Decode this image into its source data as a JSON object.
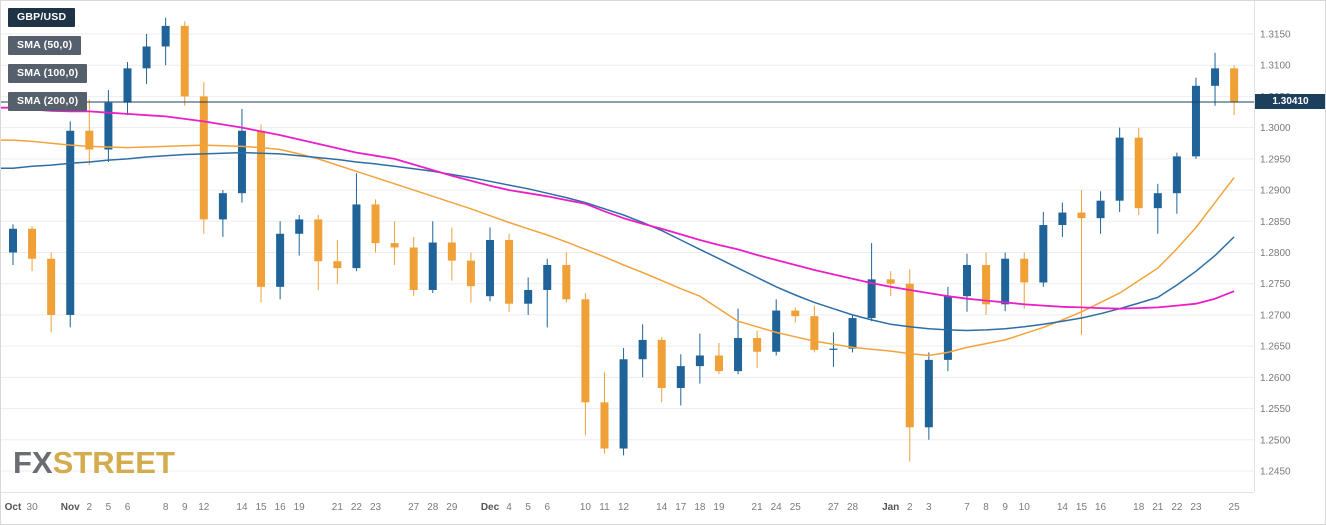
{
  "watermark": {
    "fx": "FX",
    "street": "STREET"
  },
  "legend": {
    "items": [
      {
        "label": "GBP/USD",
        "bg": "#1f3347",
        "color": "#ffffff"
      },
      {
        "label": "SMA (50,0)",
        "bg": "#56606c",
        "color": "#ffffff",
        "line_color": "#f2a33c"
      },
      {
        "label": "SMA (100,0)",
        "bg": "#56606c",
        "color": "#ffffff",
        "line_color": "#2e6da4"
      },
      {
        "label": "SMA (200,0)",
        "bg": "#56606c",
        "color": "#ffffff",
        "line_color": "#ea1fc8"
      }
    ]
  },
  "price_line": {
    "value": 1.3041,
    "label": "1.30410",
    "color": "#1c3f5e"
  },
  "chart_data": {
    "type": "candlestick",
    "title": "GBP/USD",
    "legend_position": "top-left",
    "grid": "horizontal-only",
    "y_axis": {
      "min": 1.245,
      "max": 1.315,
      "tick_step": 0.005,
      "tick_labels": [
        "1.3150",
        "1.3100",
        "1.3050",
        "1.3000",
        "1.2950",
        "1.2900",
        "1.2850",
        "1.2800",
        "1.2750",
        "1.2700",
        "1.2650",
        "1.2600",
        "1.2550",
        "1.2500",
        "1.2450"
      ]
    },
    "x_axis": {
      "note": "one entry per candle; empty label = unlabeled tick",
      "visible_labels": [
        "Oct",
        "30",
        "Nov",
        "2",
        "5",
        "6",
        "8",
        "9",
        "12",
        "14",
        "15",
        "16",
        "19",
        "21",
        "22",
        "23",
        "27",
        "28",
        "29",
        "Dec",
        "4",
        "5",
        "6",
        "10",
        "11",
        "12",
        "14",
        "17",
        "18",
        "19",
        "21",
        "24",
        "25",
        "27",
        "28",
        "Jan",
        "2",
        "3",
        "7",
        "8",
        "9",
        "10",
        "14",
        "15",
        "16",
        "18",
        "21",
        "22",
        "23",
        "25"
      ]
    },
    "colors": {
      "up": "#1f6398",
      "down": "#efa037",
      "sma50": "#f2a33c",
      "sma100": "#2e6da4",
      "sma200": "#ea1fc8",
      "grid": "#ededed",
      "axis_text": "#7a7a7a",
      "month_text": "#555555",
      "separator": "#e2e2e2",
      "price_line": "#1c3f5e"
    },
    "candles_columns": [
      "label",
      "open",
      "high",
      "low",
      "close"
    ],
    "candles": [
      [
        "Oct",
        1.28,
        1.2845,
        1.278,
        1.2838
      ],
      [
        "30",
        1.2838,
        1.2842,
        1.277,
        1.279
      ],
      [
        "",
        1.279,
        1.28,
        1.2672,
        1.27
      ],
      [
        "Nov",
        1.27,
        1.301,
        1.268,
        1.2995
      ],
      [
        "2",
        1.2995,
        1.3045,
        1.294,
        1.2965
      ],
      [
        "5",
        1.2965,
        1.306,
        1.2945,
        1.304
      ],
      [
        "6",
        1.304,
        1.3105,
        1.302,
        1.3095
      ],
      [
        "",
        1.3095,
        1.315,
        1.307,
        1.313
      ],
      [
        "8",
        1.313,
        1.3176,
        1.31,
        1.3163
      ],
      [
        "9",
        1.3163,
        1.317,
        1.3035,
        1.305
      ],
      [
        "12",
        1.305,
        1.3073,
        1.283,
        1.2853
      ],
      [
        "",
        1.2853,
        1.29,
        1.2825,
        1.2895
      ],
      [
        "14",
        1.2895,
        1.303,
        1.288,
        1.2995
      ],
      [
        "15",
        1.2995,
        1.3005,
        1.272,
        1.2745
      ],
      [
        "16",
        1.2745,
        1.285,
        1.2725,
        1.283
      ],
      [
        "19",
        1.283,
        1.286,
        1.2795,
        1.2853
      ],
      [
        "",
        1.2853,
        1.286,
        1.274,
        1.2786
      ],
      [
        "21",
        1.2786,
        1.282,
        1.275,
        1.2775
      ],
      [
        "22",
        1.2775,
        1.2927,
        1.277,
        1.2877
      ],
      [
        "23",
        1.2877,
        1.2885,
        1.28,
        1.2815
      ],
      [
        "",
        1.2815,
        1.285,
        1.278,
        1.2808
      ],
      [
        "27",
        1.2808,
        1.2825,
        1.273,
        1.274
      ],
      [
        "28",
        1.274,
        1.285,
        1.2735,
        1.2816
      ],
      [
        "29",
        1.2816,
        1.284,
        1.2755,
        1.2787
      ],
      [
        "",
        1.2787,
        1.28,
        1.272,
        1.2746
      ],
      [
        "Dec",
        1.273,
        1.284,
        1.2722,
        1.282
      ],
      [
        "4",
        1.282,
        1.283,
        1.2705,
        1.2718
      ],
      [
        "5",
        1.2718,
        1.276,
        1.27,
        1.274
      ],
      [
        "6",
        1.274,
        1.279,
        1.268,
        1.278
      ],
      [
        "",
        1.278,
        1.28,
        1.272,
        1.2725
      ],
      [
        "10",
        1.2725,
        1.2735,
        1.2507,
        1.256
      ],
      [
        "11",
        1.256,
        1.2608,
        1.2478,
        1.2486
      ],
      [
        "12",
        1.2486,
        1.2647,
        1.2475,
        1.2629
      ],
      [
        "",
        1.2629,
        1.2685,
        1.26,
        1.266
      ],
      [
        "14",
        1.266,
        1.2665,
        1.256,
        1.2583
      ],
      [
        "17",
        1.2583,
        1.2637,
        1.2555,
        1.2618
      ],
      [
        "18",
        1.2618,
        1.267,
        1.259,
        1.2635
      ],
      [
        "19",
        1.2635,
        1.2655,
        1.2605,
        1.261
      ],
      [
        "",
        1.261,
        1.271,
        1.2605,
        1.2663
      ],
      [
        "21",
        1.2663,
        1.2675,
        1.2615,
        1.2641
      ],
      [
        "24",
        1.2641,
        1.2725,
        1.2635,
        1.2707
      ],
      [
        "25",
        1.2707,
        1.2712,
        1.2688,
        1.2698
      ],
      [
        "",
        1.2698,
        1.2715,
        1.264,
        1.2644
      ],
      [
        "27",
        1.2644,
        1.2672,
        1.2617,
        1.2646
      ],
      [
        "28",
        1.2646,
        1.27,
        1.264,
        1.2695
      ],
      [
        "",
        1.2695,
        1.2815,
        1.269,
        1.2757
      ],
      [
        "Jan",
        1.2757,
        1.277,
        1.273,
        1.275
      ],
      [
        "2",
        1.275,
        1.2773,
        1.2465,
        1.252
      ],
      [
        "3",
        1.252,
        1.264,
        1.25,
        1.2628
      ],
      [
        "",
        1.2628,
        1.2745,
        1.261,
        1.273
      ],
      [
        "7",
        1.273,
        1.2798,
        1.2705,
        1.278
      ],
      [
        "8",
        1.278,
        1.28,
        1.27,
        1.2717
      ],
      [
        "9",
        1.2717,
        1.28,
        1.2706,
        1.279
      ],
      [
        "10",
        1.279,
        1.28,
        1.271,
        1.2752
      ],
      [
        "",
        1.2752,
        1.2865,
        1.2745,
        1.2844
      ],
      [
        "14",
        1.2844,
        1.288,
        1.2825,
        1.2864
      ],
      [
        "15",
        1.2864,
        1.29,
        1.2668,
        1.2855
      ],
      [
        "16",
        1.2855,
        1.2898,
        1.283,
        1.2883
      ],
      [
        "",
        1.2883,
        1.3,
        1.2865,
        1.2984
      ],
      [
        "18",
        1.2984,
        1.3,
        1.286,
        1.2871
      ],
      [
        "21",
        1.2871,
        1.291,
        1.283,
        1.2895
      ],
      [
        "22",
        1.2895,
        1.296,
        1.2862,
        1.2954
      ],
      [
        "23",
        1.2954,
        1.308,
        1.295,
        1.3067
      ],
      [
        "",
        1.3067,
        1.312,
        1.3035,
        1.3095
      ],
      [
        "25",
        1.3095,
        1.31,
        1.302,
        1.3041
      ]
    ],
    "sma": [
      {
        "name": "SMA (50,0)",
        "color_key": "sma50",
        "width": 1.5,
        "values": [
          1.298,
          1.2978,
          1.2975,
          1.2972,
          1.297,
          1.2969,
          1.2968,
          1.2969,
          1.297,
          1.2971,
          1.2972,
          1.2971,
          1.297,
          1.2968,
          1.2965,
          1.2958,
          1.295,
          1.294,
          1.293,
          1.292,
          1.291,
          1.29,
          1.289,
          1.288,
          1.287,
          1.2859,
          1.2848,
          1.2838,
          1.2828,
          1.2817,
          1.2805,
          1.2793,
          1.278,
          1.2768,
          1.2755,
          1.2742,
          1.273,
          1.271,
          1.269,
          1.2681,
          1.2672,
          1.2665,
          1.2658,
          1.2653,
          1.2648,
          1.2645,
          1.2642,
          1.2638,
          1.2635,
          1.264,
          1.2648,
          1.2654,
          1.266,
          1.267,
          1.268,
          1.2692,
          1.2705,
          1.272,
          1.2735,
          1.2755,
          1.2775,
          1.2806,
          1.284,
          1.288,
          1.292
        ]
      },
      {
        "name": "SMA (100,0)",
        "color_key": "sma100",
        "width": 1.5,
        "values": [
          1.2935,
          1.2938,
          1.294,
          1.2943,
          1.2945,
          1.2948,
          1.295,
          1.2953,
          1.2955,
          1.2957,
          1.2958,
          1.2959,
          1.296,
          1.2959,
          1.2958,
          1.2955,
          1.2952,
          1.2949,
          1.2945,
          1.2942,
          1.2938,
          1.2934,
          1.293,
          1.2925,
          1.292,
          1.2914,
          1.2908,
          1.2902,
          1.2895,
          1.2888,
          1.288,
          1.287,
          1.286,
          1.2848,
          1.2835,
          1.282,
          1.2805,
          1.279,
          1.2775,
          1.276,
          1.2745,
          1.2732,
          1.272,
          1.271,
          1.27,
          1.2692,
          1.2685,
          1.2681,
          1.2678,
          1.2676,
          1.2675,
          1.2676,
          1.2678,
          1.2681,
          1.2685,
          1.269,
          1.2695,
          1.2702,
          1.271,
          1.2719,
          1.2728,
          1.2748,
          1.277,
          1.2795,
          1.2825
        ]
      },
      {
        "name": "SMA (200,0)",
        "color_key": "sma200",
        "width": 1.8,
        "values": [
          1.3032,
          1.3029,
          1.3027,
          1.3026,
          1.3026,
          1.3024,
          1.3022,
          1.302,
          1.3018,
          1.3014,
          1.301,
          1.3005,
          1.3,
          1.2994,
          1.2988,
          1.2981,
          1.2974,
          1.2967,
          1.296,
          1.2955,
          1.295,
          1.2941,
          1.2932,
          1.2923,
          1.2915,
          1.2907,
          1.29,
          1.2895,
          1.289,
          1.2884,
          1.2878,
          1.2866,
          1.2855,
          1.2846,
          1.2838,
          1.2829,
          1.282,
          1.2812,
          1.2805,
          1.2796,
          1.2788,
          1.278,
          1.2772,
          1.2765,
          1.2758,
          1.2751,
          1.2745,
          1.274,
          1.2735,
          1.273,
          1.2726,
          1.2723,
          1.272,
          1.2717,
          1.2715,
          1.2713,
          1.2712,
          1.2711,
          1.271,
          1.2711,
          1.2712,
          1.2715,
          1.2718,
          1.2726,
          1.2738
        ]
      }
    ]
  }
}
